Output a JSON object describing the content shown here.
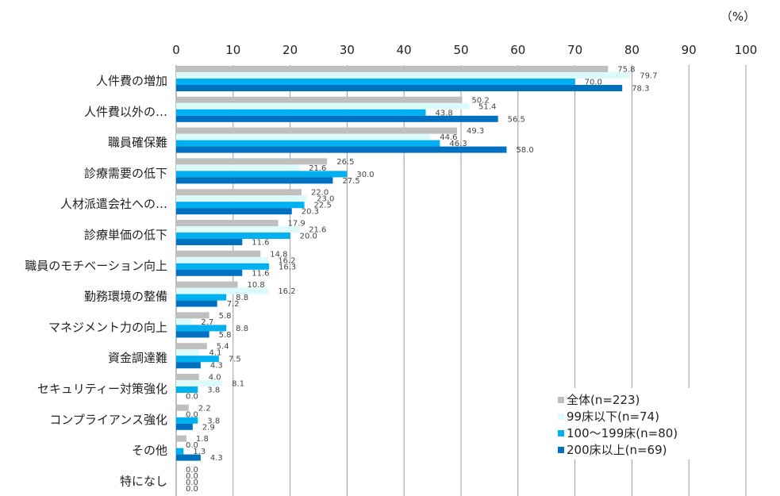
{
  "chart_data": {
    "type": "bar",
    "orientation": "horizontal",
    "unit_label": "（%）",
    "xlim": [
      0,
      100
    ],
    "xticks": [
      0,
      10,
      20,
      30,
      40,
      50,
      60,
      70,
      80,
      90,
      100
    ],
    "categories": [
      "人件費の増加",
      "人件費以外の…",
      "職員確保難",
      "診療需要の低下",
      "人材派遣会社への…",
      "診療単価の低下",
      "職員のモチベーション向上",
      "勤務環境の整備",
      "マネジメント力の向上",
      "資金調達難",
      "セキュリティー対策強化",
      "コンプライアンス強化",
      "その他",
      "特になし"
    ],
    "series": [
      {
        "name": "全体(n=223)",
        "color": "#bfbfbf",
        "values": [
          75.8,
          50.2,
          49.3,
          26.5,
          22.0,
          17.9,
          14.8,
          10.8,
          5.8,
          5.4,
          4.0,
          2.2,
          1.8,
          0.0
        ]
      },
      {
        "name": "99床以下(n=74)",
        "color": "#ddfbfb",
        "values": [
          79.7,
          51.4,
          44.6,
          21.6,
          23.0,
          21.6,
          16.2,
          16.2,
          2.7,
          4.1,
          8.1,
          0.0,
          0.0,
          0.0
        ]
      },
      {
        "name": "100～199床(n=80)",
        "color": "#00b0f0",
        "values": [
          70.0,
          43.8,
          46.3,
          30.0,
          22.5,
          20.0,
          16.3,
          8.8,
          8.8,
          7.5,
          3.8,
          3.8,
          1.3,
          0.0
        ]
      },
      {
        "name": "200床以上(n=69)",
        "color": "#0070c0",
        "values": [
          78.3,
          56.5,
          58.0,
          27.5,
          20.3,
          11.6,
          11.6,
          7.2,
          5.8,
          4.3,
          0.0,
          2.9,
          4.3,
          0.0
        ]
      }
    ],
    "legend_position": "bottom-right"
  }
}
